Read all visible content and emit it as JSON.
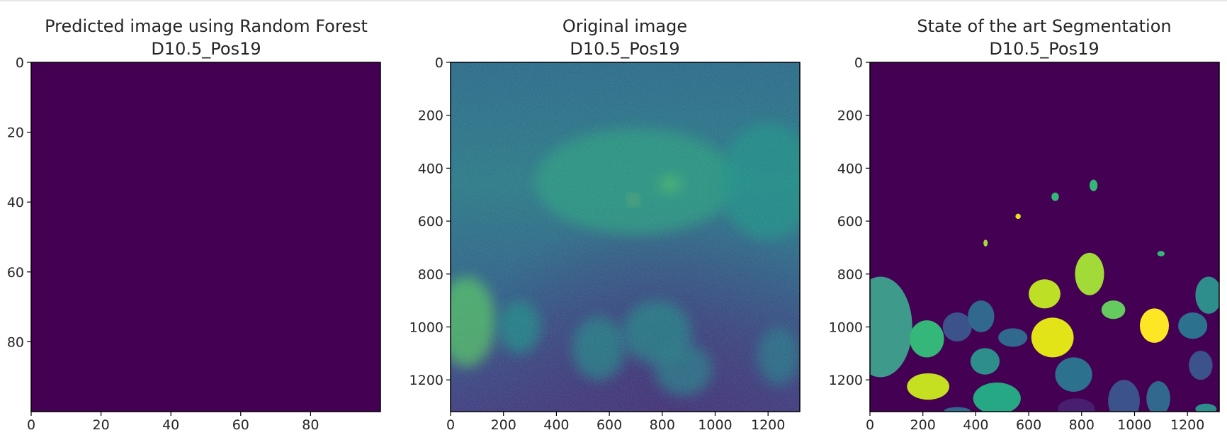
{
  "chart_data": [
    {
      "type": "heatmap",
      "title": "Predicted image using Random Forest",
      "subtitle": "D10.5_Pos19",
      "xlim": [
        0,
        100
      ],
      "ylim": [
        100,
        0
      ],
      "xticks": [
        0,
        20,
        40,
        60,
        80
      ],
      "yticks": [
        0,
        20,
        40,
        60,
        80
      ],
      "fill_color": "#440154",
      "values_description": "uniform value"
    },
    {
      "type": "heatmap",
      "title": "Original image",
      "subtitle": "D10.5_Pos19",
      "xlim": [
        0,
        1320
      ],
      "ylim": [
        1320,
        0
      ],
      "xticks": [
        0,
        200,
        400,
        600,
        800,
        1000,
        1200
      ],
      "yticks": [
        0,
        200,
        400,
        600,
        800,
        1000,
        1200
      ],
      "colormap": "viridis",
      "blobs": [
        {
          "x": 700,
          "y": 450,
          "rx": 380,
          "ry": 200,
          "level": 0.55
        },
        {
          "x": 1200,
          "y": 450,
          "rx": 180,
          "ry": 220,
          "level": 0.5
        },
        {
          "x": 60,
          "y": 980,
          "rx": 110,
          "ry": 170,
          "level": 0.72
        },
        {
          "x": 260,
          "y": 1000,
          "rx": 80,
          "ry": 100,
          "level": 0.48
        },
        {
          "x": 560,
          "y": 1080,
          "rx": 100,
          "ry": 120,
          "level": 0.45
        },
        {
          "x": 780,
          "y": 1020,
          "rx": 130,
          "ry": 120,
          "level": 0.45
        },
        {
          "x": 880,
          "y": 1160,
          "rx": 110,
          "ry": 100,
          "level": 0.42
        },
        {
          "x": 1240,
          "y": 1110,
          "rx": 80,
          "ry": 110,
          "level": 0.4
        },
        {
          "x": 690,
          "y": 520,
          "rx": 14,
          "ry": 14,
          "level": 0.95
        },
        {
          "x": 830,
          "y": 460,
          "rx": 40,
          "ry": 30,
          "level": 0.7
        }
      ]
    },
    {
      "type": "heatmap",
      "title": "State of the art Segmentation",
      "subtitle": "D10.5_Pos19",
      "xlim": [
        0,
        1320
      ],
      "ylim": [
        1320,
        0
      ],
      "xticks": [
        0,
        200,
        400,
        600,
        800,
        1000,
        1200
      ],
      "yticks": [
        0,
        200,
        400,
        600,
        800,
        1000,
        1200
      ],
      "background_color": "#440154",
      "segments": [
        {
          "x": 40,
          "y": 1000,
          "rx": 120,
          "ry": 190,
          "color": "#3e9a8b"
        },
        {
          "x": 215,
          "y": 1045,
          "rx": 65,
          "ry": 70,
          "color": "#35b779"
        },
        {
          "x": 330,
          "y": 1000,
          "rx": 55,
          "ry": 55,
          "color": "#3b528b"
        },
        {
          "x": 420,
          "y": 960,
          "rx": 50,
          "ry": 60,
          "color": "#31688e"
        },
        {
          "x": 220,
          "y": 1225,
          "rx": 80,
          "ry": 50,
          "color": "#c5e021"
        },
        {
          "x": 435,
          "y": 1130,
          "rx": 55,
          "ry": 50,
          "color": "#2e8e8c"
        },
        {
          "x": 480,
          "y": 1270,
          "rx": 90,
          "ry": 60,
          "color": "#26a884"
        },
        {
          "x": 540,
          "y": 1040,
          "rx": 55,
          "ry": 35,
          "color": "#31688e"
        },
        {
          "x": 690,
          "y": 1040,
          "rx": 80,
          "ry": 75,
          "color": "#e2e418"
        },
        {
          "x": 660,
          "y": 875,
          "rx": 60,
          "ry": 55,
          "color": "#bddf26"
        },
        {
          "x": 830,
          "y": 800,
          "rx": 55,
          "ry": 80,
          "color": "#a2da37"
        },
        {
          "x": 920,
          "y": 935,
          "rx": 45,
          "ry": 35,
          "color": "#65cb5e"
        },
        {
          "x": 1075,
          "y": 995,
          "rx": 55,
          "ry": 65,
          "color": "#fde725"
        },
        {
          "x": 1220,
          "y": 995,
          "rx": 55,
          "ry": 50,
          "color": "#2c728e"
        },
        {
          "x": 1280,
          "y": 880,
          "rx": 50,
          "ry": 70,
          "color": "#2e8e8c"
        },
        {
          "x": 1250,
          "y": 1145,
          "rx": 45,
          "ry": 55,
          "color": "#3b528b"
        },
        {
          "x": 770,
          "y": 1180,
          "rx": 70,
          "ry": 65,
          "color": "#2c728e"
        },
        {
          "x": 960,
          "y": 1280,
          "rx": 60,
          "ry": 80,
          "color": "#3b528b"
        },
        {
          "x": 1090,
          "y": 1270,
          "rx": 45,
          "ry": 65,
          "color": "#31688e"
        },
        {
          "x": 780,
          "y": 1310,
          "rx": 70,
          "ry": 40,
          "color": "#481f70"
        },
        {
          "x": 700,
          "y": 508,
          "rx": 14,
          "ry": 16,
          "color": "#35b779"
        },
        {
          "x": 845,
          "y": 465,
          "rx": 15,
          "ry": 22,
          "color": "#35b779"
        },
        {
          "x": 560,
          "y": 582,
          "rx": 10,
          "ry": 10,
          "color": "#e2e418"
        },
        {
          "x": 437,
          "y": 683,
          "rx": 8,
          "ry": 13,
          "color": "#a2da37"
        },
        {
          "x": 1100,
          "y": 723,
          "rx": 14,
          "ry": 10,
          "color": "#35b779"
        },
        {
          "x": 1270,
          "y": 1310,
          "rx": 40,
          "ry": 20,
          "color": "#2e8e8c"
        },
        {
          "x": 330,
          "y": 1318,
          "rx": 50,
          "ry": 15,
          "color": "#31688e"
        }
      ]
    }
  ]
}
